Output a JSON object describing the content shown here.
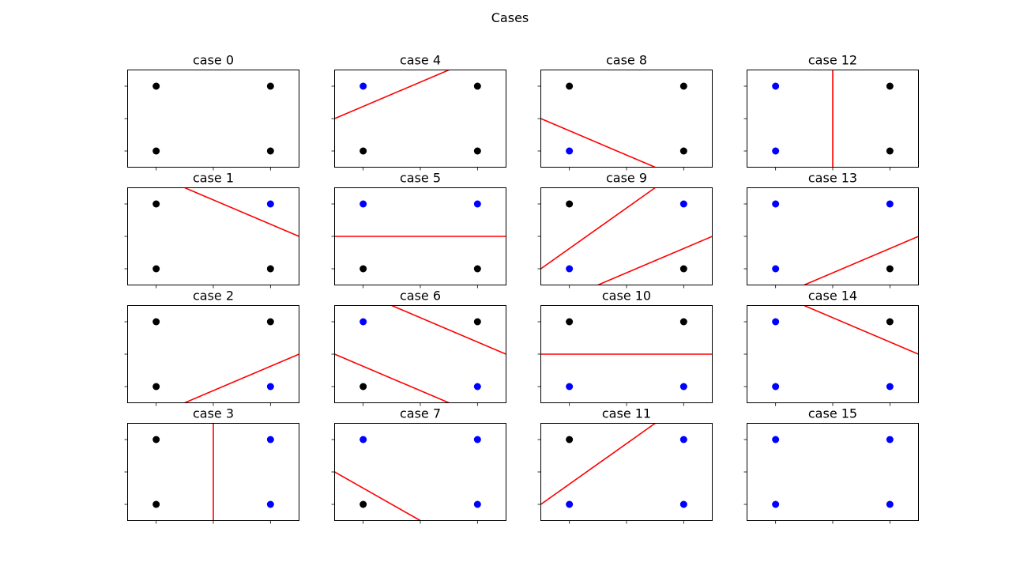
{
  "figure": {
    "title": "Cases"
  },
  "chart_data": [
    {
      "type": "scatter",
      "title": "case 0",
      "points": [
        {
          "x": 0,
          "y": 1,
          "color": "black"
        },
        {
          "x": 1,
          "y": 1,
          "color": "black"
        },
        {
          "x": 0,
          "y": 0,
          "color": "black"
        },
        {
          "x": 1,
          "y": 0,
          "color": "black"
        }
      ],
      "lines": []
    },
    {
      "type": "scatter",
      "title": "case 1",
      "points": [
        {
          "x": 0,
          "y": 1,
          "color": "black"
        },
        {
          "x": 1,
          "y": 1,
          "color": "blue"
        },
        {
          "x": 0,
          "y": 0,
          "color": "black"
        },
        {
          "x": 1,
          "y": 0,
          "color": "black"
        }
      ],
      "lines": [
        [
          [
            0.25,
            1.25
          ],
          [
            1.25,
            0.5
          ]
        ]
      ]
    },
    {
      "type": "scatter",
      "title": "case 2",
      "points": [
        {
          "x": 0,
          "y": 1,
          "color": "black"
        },
        {
          "x": 1,
          "y": 1,
          "color": "black"
        },
        {
          "x": 0,
          "y": 0,
          "color": "black"
        },
        {
          "x": 1,
          "y": 0,
          "color": "blue"
        }
      ],
      "lines": [
        [
          [
            0.25,
            -0.25
          ],
          [
            1.25,
            0.5
          ]
        ]
      ]
    },
    {
      "type": "scatter",
      "title": "case 3",
      "points": [
        {
          "x": 0,
          "y": 1,
          "color": "black"
        },
        {
          "x": 1,
          "y": 1,
          "color": "blue"
        },
        {
          "x": 0,
          "y": 0,
          "color": "black"
        },
        {
          "x": 1,
          "y": 0,
          "color": "blue"
        }
      ],
      "lines": [
        [
          [
            0.5,
            -0.25
          ],
          [
            0.5,
            1.25
          ]
        ]
      ]
    },
    {
      "type": "scatter",
      "title": "case 4",
      "points": [
        {
          "x": 0,
          "y": 1,
          "color": "blue"
        },
        {
          "x": 1,
          "y": 1,
          "color": "black"
        },
        {
          "x": 0,
          "y": 0,
          "color": "black"
        },
        {
          "x": 1,
          "y": 0,
          "color": "black"
        }
      ],
      "lines": [
        [
          [
            -0.25,
            0.5
          ],
          [
            0.75,
            1.25
          ]
        ]
      ]
    },
    {
      "type": "scatter",
      "title": "case 5",
      "points": [
        {
          "x": 0,
          "y": 1,
          "color": "blue"
        },
        {
          "x": 1,
          "y": 1,
          "color": "blue"
        },
        {
          "x": 0,
          "y": 0,
          "color": "black"
        },
        {
          "x": 1,
          "y": 0,
          "color": "black"
        }
      ],
      "lines": [
        [
          [
            -0.25,
            0.5
          ],
          [
            1.25,
            0.5
          ]
        ]
      ]
    },
    {
      "type": "scatter",
      "title": "case 6",
      "points": [
        {
          "x": 0,
          "y": 1,
          "color": "blue"
        },
        {
          "x": 1,
          "y": 1,
          "color": "black"
        },
        {
          "x": 0,
          "y": 0,
          "color": "black"
        },
        {
          "x": 1,
          "y": 0,
          "color": "blue"
        }
      ],
      "lines": [
        [
          [
            0.25,
            1.25
          ],
          [
            1.25,
            0.5
          ]
        ],
        [
          [
            -0.25,
            0.5
          ],
          [
            0.75,
            -0.25
          ]
        ]
      ]
    },
    {
      "type": "scatter",
      "title": "case 7",
      "points": [
        {
          "x": 0,
          "y": 1,
          "color": "blue"
        },
        {
          "x": 1,
          "y": 1,
          "color": "blue"
        },
        {
          "x": 0,
          "y": 0,
          "color": "black"
        },
        {
          "x": 1,
          "y": 0,
          "color": "blue"
        }
      ],
      "lines": [
        [
          [
            -0.25,
            0.5
          ],
          [
            0.5,
            -0.25
          ]
        ]
      ]
    },
    {
      "type": "scatter",
      "title": "case 8",
      "points": [
        {
          "x": 0,
          "y": 1,
          "color": "black"
        },
        {
          "x": 1,
          "y": 1,
          "color": "black"
        },
        {
          "x": 0,
          "y": 0,
          "color": "blue"
        },
        {
          "x": 1,
          "y": 0,
          "color": "black"
        }
      ],
      "lines": [
        [
          [
            -0.25,
            0.5
          ],
          [
            0.75,
            -0.25
          ]
        ]
      ]
    },
    {
      "type": "scatter",
      "title": "case 9",
      "points": [
        {
          "x": 0,
          "y": 1,
          "color": "black"
        },
        {
          "x": 1,
          "y": 1,
          "color": "blue"
        },
        {
          "x": 0,
          "y": 0,
          "color": "blue"
        },
        {
          "x": 1,
          "y": 0,
          "color": "black"
        }
      ],
      "lines": [
        [
          [
            -0.25,
            0.0
          ],
          [
            0.75,
            1.25
          ]
        ],
        [
          [
            0.25,
            -0.25
          ],
          [
            1.25,
            0.5
          ]
        ]
      ]
    },
    {
      "type": "scatter",
      "title": "case 10",
      "points": [
        {
          "x": 0,
          "y": 1,
          "color": "black"
        },
        {
          "x": 1,
          "y": 1,
          "color": "black"
        },
        {
          "x": 0,
          "y": 0,
          "color": "blue"
        },
        {
          "x": 1,
          "y": 0,
          "color": "blue"
        }
      ],
      "lines": [
        [
          [
            -0.25,
            0.5
          ],
          [
            1.25,
            0.5
          ]
        ]
      ]
    },
    {
      "type": "scatter",
      "title": "case 11",
      "points": [
        {
          "x": 0,
          "y": 1,
          "color": "black"
        },
        {
          "x": 1,
          "y": 1,
          "color": "blue"
        },
        {
          "x": 0,
          "y": 0,
          "color": "blue"
        },
        {
          "x": 1,
          "y": 0,
          "color": "blue"
        }
      ],
      "lines": [
        [
          [
            -0.25,
            0.0
          ],
          [
            0.75,
            1.25
          ]
        ]
      ]
    },
    {
      "type": "scatter",
      "title": "case 12",
      "points": [
        {
          "x": 0,
          "y": 1,
          "color": "blue"
        },
        {
          "x": 1,
          "y": 1,
          "color": "black"
        },
        {
          "x": 0,
          "y": 0,
          "color": "blue"
        },
        {
          "x": 1,
          "y": 0,
          "color": "black"
        }
      ],
      "lines": [
        [
          [
            0.5,
            -0.25
          ],
          [
            0.5,
            1.25
          ]
        ]
      ]
    },
    {
      "type": "scatter",
      "title": "case 13",
      "points": [
        {
          "x": 0,
          "y": 1,
          "color": "blue"
        },
        {
          "x": 1,
          "y": 1,
          "color": "blue"
        },
        {
          "x": 0,
          "y": 0,
          "color": "blue"
        },
        {
          "x": 1,
          "y": 0,
          "color": "black"
        }
      ],
      "lines": [
        [
          [
            0.25,
            -0.25
          ],
          [
            1.25,
            0.5
          ]
        ]
      ]
    },
    {
      "type": "scatter",
      "title": "case 14",
      "points": [
        {
          "x": 0,
          "y": 1,
          "color": "blue"
        },
        {
          "x": 1,
          "y": 1,
          "color": "black"
        },
        {
          "x": 0,
          "y": 0,
          "color": "blue"
        },
        {
          "x": 1,
          "y": 0,
          "color": "blue"
        }
      ],
      "lines": [
        [
          [
            0.25,
            1.25
          ],
          [
            1.25,
            0.5
          ]
        ]
      ]
    },
    {
      "type": "scatter",
      "title": "case 15",
      "points": [
        {
          "x": 0,
          "y": 1,
          "color": "blue"
        },
        {
          "x": 1,
          "y": 1,
          "color": "blue"
        },
        {
          "x": 0,
          "y": 0,
          "color": "blue"
        },
        {
          "x": 1,
          "y": 0,
          "color": "blue"
        }
      ],
      "lines": []
    }
  ],
  "axes": {
    "xlim": [
      -0.25,
      1.25
    ],
    "ylim": [
      -0.25,
      1.25
    ],
    "xticks": [
      0,
      0.5,
      1
    ],
    "yticks": [
      0,
      0.5,
      1
    ],
    "tick_labels": "hidden",
    "line_color": "#ff0000"
  },
  "colors": {
    "black": "#000000",
    "blue": "#0000ff"
  }
}
